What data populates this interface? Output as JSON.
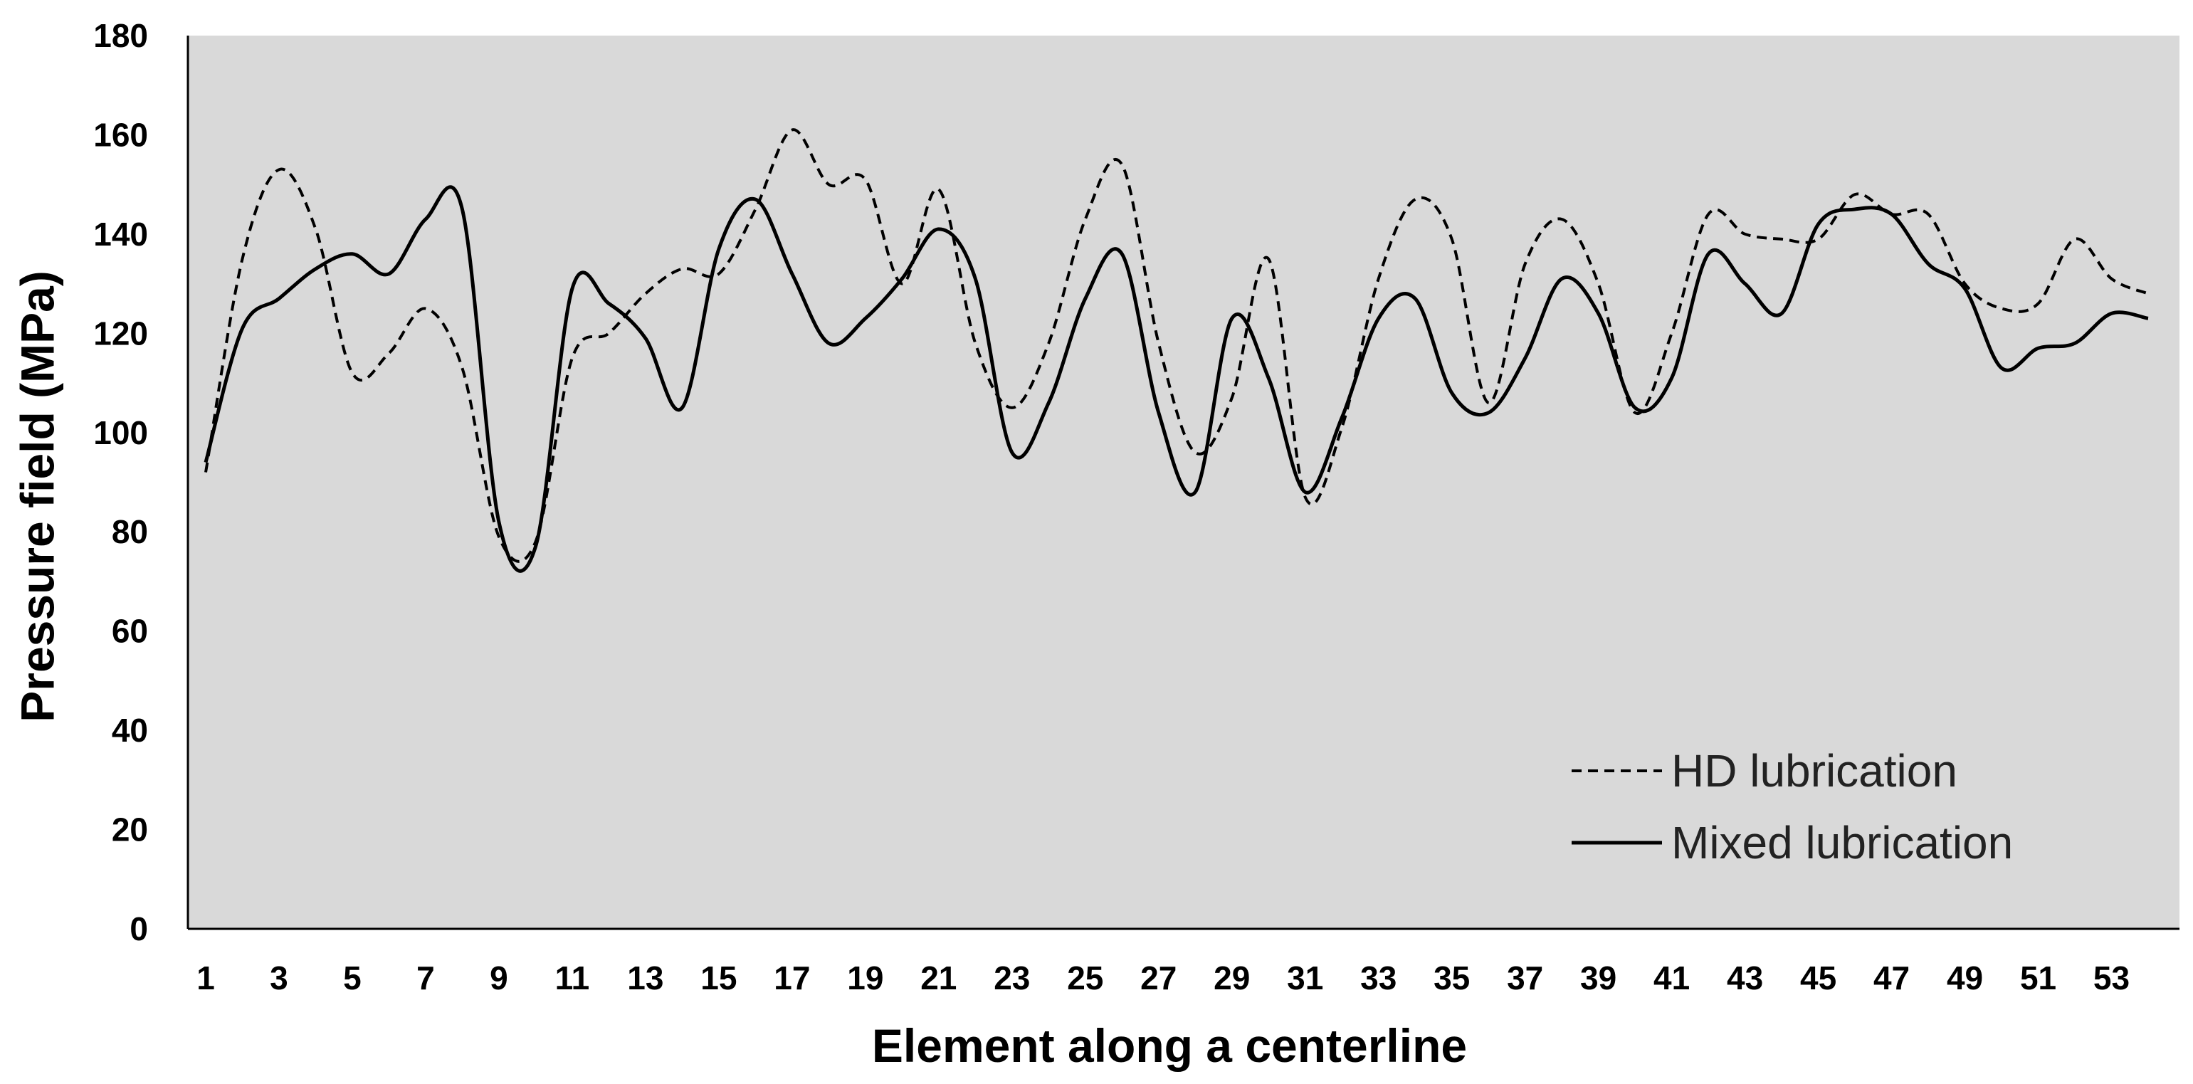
{
  "chart_data": {
    "type": "line",
    "title": "",
    "xlabel": "Element along a centerline",
    "ylabel": "Pressure field (MPa)",
    "ylim": [
      0,
      180
    ],
    "yticks": [
      0,
      20,
      40,
      60,
      80,
      100,
      120,
      140,
      160,
      180
    ],
    "xlim": [
      1,
      54
    ],
    "xticks": [
      1,
      3,
      5,
      7,
      9,
      11,
      13,
      15,
      17,
      19,
      21,
      23,
      25,
      27,
      29,
      31,
      33,
      35,
      37,
      39,
      41,
      43,
      45,
      47,
      49,
      51,
      53
    ],
    "grid": false,
    "background": "#d9d9d9",
    "legend_position": "bottom-right",
    "x": [
      1,
      2,
      3,
      4,
      5,
      6,
      7,
      8,
      9,
      10,
      11,
      12,
      13,
      14,
      15,
      16,
      17,
      18,
      19,
      20,
      21,
      22,
      23,
      24,
      25,
      26,
      27,
      28,
      29,
      30,
      31,
      32,
      33,
      34,
      35,
      36,
      37,
      38,
      39,
      40,
      41,
      42,
      43,
      44,
      45,
      46,
      47,
      48,
      49,
      50,
      51,
      52,
      53,
      54
    ],
    "series": [
      {
        "name": "HD lubrication",
        "style": "dashed",
        "color": "#000000",
        "values": [
          92,
          135,
          153,
          141,
          112,
          116,
          125,
          113,
          79,
          78,
          115,
          120,
          128,
          133,
          132,
          145,
          161,
          150,
          151,
          130,
          149,
          118,
          105,
          118,
          143,
          154,
          118,
          96,
          107,
          135,
          87,
          101,
          131,
          147,
          139,
          106,
          134,
          143,
          130,
          104,
          120,
          144,
          140,
          139,
          139,
          148,
          144,
          144,
          130,
          125,
          126,
          139,
          131,
          128
        ]
      },
      {
        "name": "Mixed lubrication",
        "style": "solid",
        "color": "#000000",
        "values": [
          94,
          121,
          127,
          133,
          136,
          132,
          143,
          145,
          82,
          77,
          129,
          126,
          119,
          105,
          137,
          147,
          132,
          118,
          123,
          131,
          141,
          131,
          96,
          106,
          127,
          136,
          104,
          88,
          123,
          111,
          88,
          103,
          123,
          127,
          108,
          104,
          115,
          131,
          124,
          105,
          111,
          136,
          130,
          124,
          142,
          145,
          144,
          134,
          129,
          113,
          117,
          118,
          124,
          123
        ]
      }
    ]
  }
}
